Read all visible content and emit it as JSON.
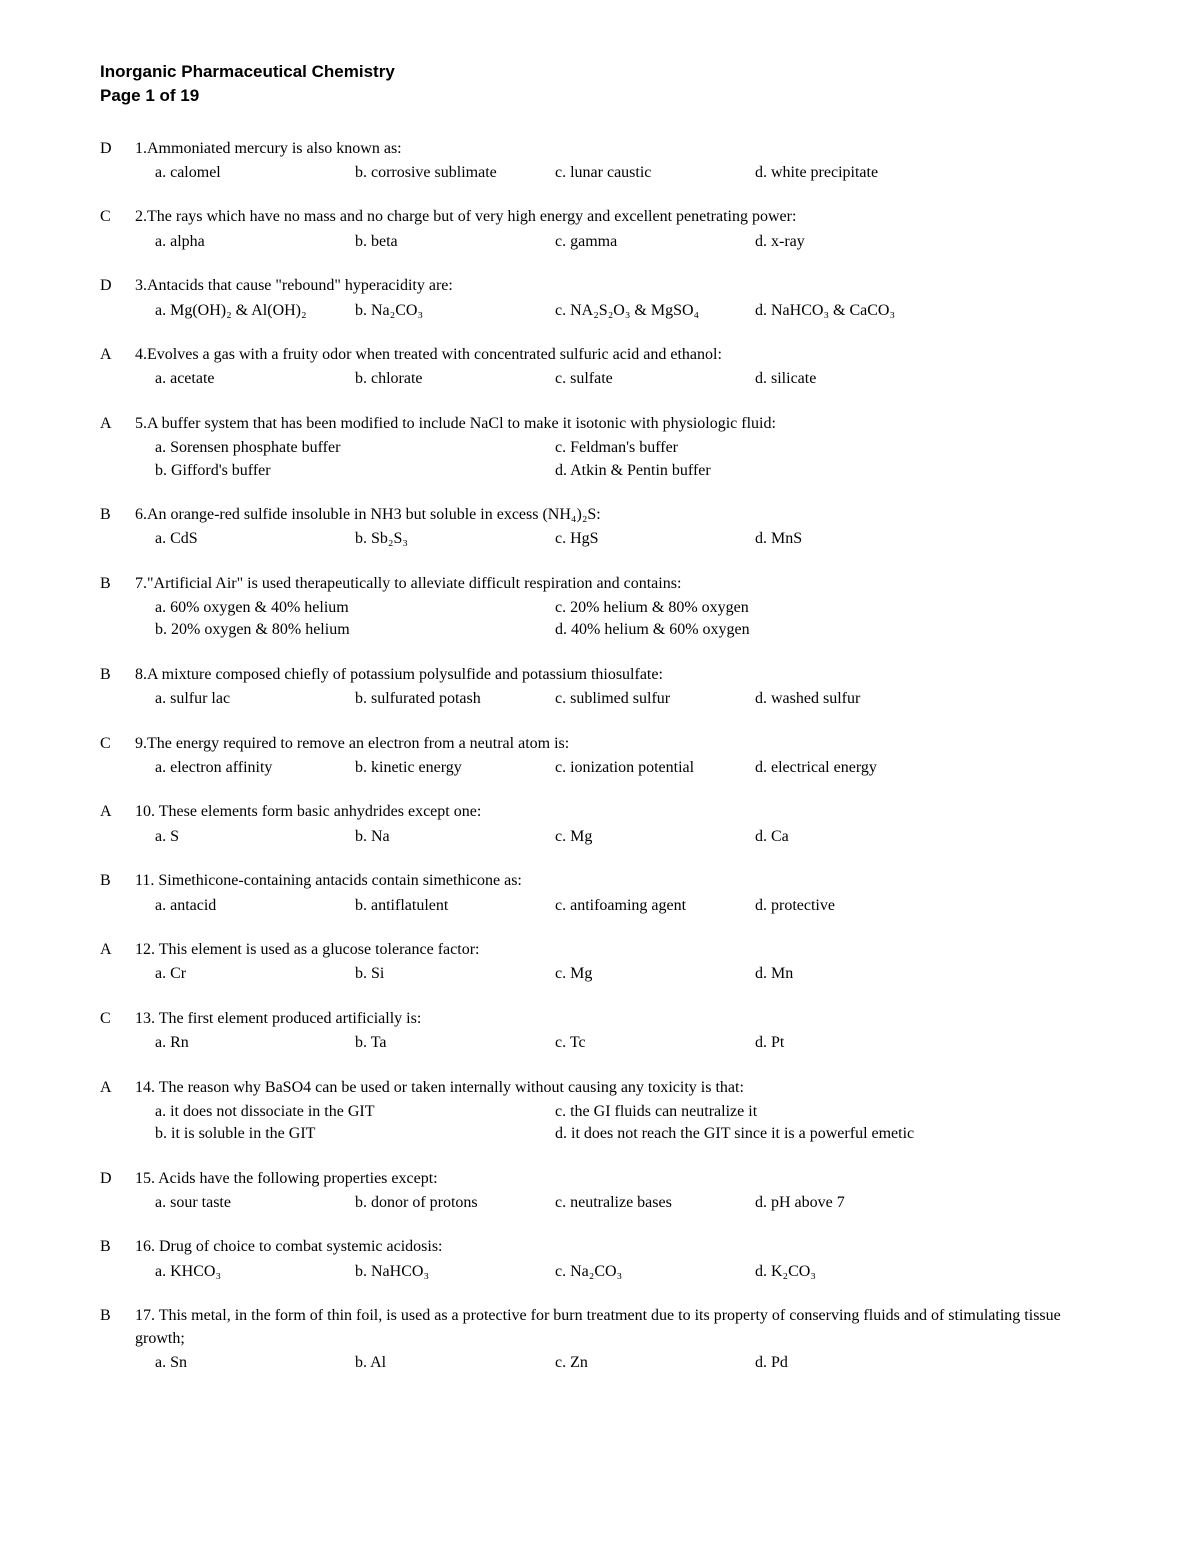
{
  "header": {
    "title": "Inorganic Pharmaceutical Chemistry",
    "page": "Page 1 of 19"
  },
  "questions": [
    {
      "answer": "D",
      "number": "1.",
      "text": "Ammoniated mercury is also known as:",
      "layout": "4col",
      "options": [
        "a. calomel",
        "b. corrosive sublimate",
        "c. lunar caustic",
        "d. white precipitate"
      ]
    },
    {
      "answer": "C",
      "number": "2.",
      "text": "The rays which have no mass and no charge but of very high energy and excellent penetrating power:",
      "layout": "4col",
      "options": [
        "a. alpha",
        "b. beta",
        "c. gamma",
        "d. x-ray"
      ]
    },
    {
      "answer": "D",
      "number": "3.",
      "text": "Antacids that cause \"rebound\" hyperacidity are:",
      "layout": "4col",
      "options": [
        "a. Mg(OH)₂ & Al(OH)₂",
        "b. Na₂CO₃",
        "c. NA₂S₂O₃ & MgSO₄",
        "d. NaHCO₃ & CaCO₃"
      ]
    },
    {
      "answer": "A",
      "number": "4.",
      "text": "Evolves a gas with a fruity odor when treated with concentrated sulfuric acid and ethanol:",
      "layout": "4col",
      "options": [
        "a. acetate",
        "b. chlorate",
        "c. sulfate",
        "d. silicate"
      ]
    },
    {
      "answer": "A",
      "number": "5.",
      "text": "A buffer system that has been modified to include NaCl to make it isotonic with physiologic fluid:",
      "layout": "2col",
      "options": [
        "a. Sorensen phosphate buffer",
        "c. Feldman's buffer",
        "b. Gifford's buffer",
        "d. Atkin & Pentin buffer"
      ]
    },
    {
      "answer": "B",
      "number": "6.",
      "text": "An orange-red sulfide insoluble in NH3 but soluble in excess (NH₄)₂S:",
      "layout": "4col",
      "options": [
        "a. CdS",
        "b. Sb₂S₃",
        "c. HgS",
        "d. MnS"
      ]
    },
    {
      "answer": "B",
      "number": "7.",
      "text": "\"Artificial Air\" is used therapeutically to alleviate difficult respiration and contains:",
      "layout": "2col",
      "options": [
        "a. 60% oxygen & 40% helium",
        "c. 20% helium & 80% oxygen",
        "b. 20% oxygen & 80% helium",
        "d. 40% helium & 60% oxygen"
      ]
    },
    {
      "answer": "B",
      "number": "8.",
      "text": "A mixture composed chiefly of potassium polysulfide and potassium thiosulfate:",
      "layout": "4col",
      "options": [
        "a. sulfur lac",
        "b. sulfurated potash",
        "c. sublimed sulfur",
        "d. washed sulfur"
      ]
    },
    {
      "answer": "C",
      "number": "9.",
      "text": "The energy required to remove an electron from a neutral atom is:",
      "layout": "4col",
      "options": [
        "a. electron affinity",
        "b. kinetic energy",
        "c. ionization potential",
        "d. electrical energy"
      ]
    },
    {
      "answer": "A",
      "number": "10.",
      "text": " These elements form basic anhydrides except one:",
      "layout": "4col",
      "options": [
        "a. S",
        "b. Na",
        "c. Mg",
        "d. Ca"
      ]
    },
    {
      "answer": "B",
      "number": "11.",
      "text": " Simethicone-containing antacids contain simethicone as:",
      "layout": "4col",
      "options": [
        "a. antacid",
        "b. antiflatulent",
        "c. antifoaming agent",
        "d. protective"
      ]
    },
    {
      "answer": "A",
      "number": "12.",
      "text": " This element is used as a glucose tolerance factor:",
      "layout": "4col",
      "options": [
        "a. Cr",
        "b. Si",
        "c. Mg",
        "d. Mn"
      ]
    },
    {
      "answer": "C",
      "number": "13.",
      "text": " The first element produced artificially is:",
      "layout": "4col",
      "options": [
        "a. Rn",
        "b. Ta",
        "c. Tc",
        "d. Pt"
      ]
    },
    {
      "answer": "A",
      "number": "14.",
      "text": " The reason why BaSO4 can be used or taken internally without causing any toxicity is that:",
      "layout": "2col-wide",
      "options": [
        "a. it does not dissociate in the GIT",
        "c. the GI fluids can neutralize it",
        "b. it is soluble in the GIT",
        "d. it does not reach the GIT since it is a powerful emetic"
      ]
    },
    {
      "answer": "D",
      "number": "15.",
      "text": " Acids have the following properties except:",
      "layout": "4col",
      "options": [
        "a. sour taste",
        "b. donor of protons",
        "c. neutralize bases",
        "d. pH above 7"
      ]
    },
    {
      "answer": "B",
      "number": "16.",
      "text": " Drug of choice to combat systemic acidosis:",
      "layout": "4col",
      "options": [
        "a. KHCO₃",
        "b. NaHCO₃",
        "c. Na₂CO₃",
        "d. K₂CO₃"
      ]
    },
    {
      "answer": "B",
      "number": "17.",
      "text": " This metal, in the form of thin foil, is used as a protective for burn treatment due to its property of conserving fluids and of stimulating tissue growth;",
      "layout": "4col",
      "options": [
        "a. Sn",
        "b. Al",
        "c. Zn",
        "d. Pd"
      ]
    }
  ]
}
